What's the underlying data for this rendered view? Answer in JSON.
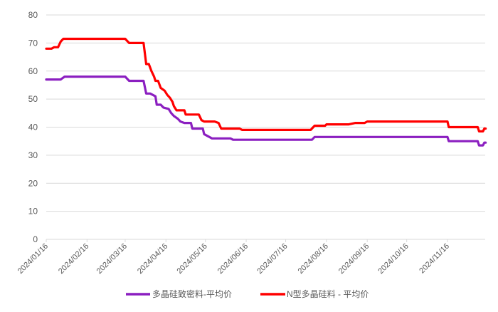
{
  "chart_data": {
    "type": "line",
    "title": "",
    "xlabel": "",
    "ylabel": "",
    "ylim": [
      0,
      80
    ],
    "yticks": [
      0,
      10,
      20,
      30,
      40,
      50,
      60,
      70,
      80
    ],
    "grid": true,
    "legend_position": "bottom",
    "x_tick_labels": [
      "2024/01/16",
      "2024/02/16",
      "2024/03/16",
      "2024/04/16",
      "2024/05/16",
      "2024/06/16",
      "2024/07/16",
      "2024/08/16",
      "2024/09/16",
      "2024/10/16",
      "2024/11/16"
    ],
    "x_unit": "days since 2024/01/16",
    "x_range": [
      0,
      334
    ],
    "series": [
      {
        "name": "多晶硅致密料-平均价",
        "color": "#8B1FC0",
        "points": [
          [
            0,
            57
          ],
          [
            11,
            57
          ],
          [
            14,
            58
          ],
          [
            60,
            58
          ],
          [
            63,
            56.5
          ],
          [
            74,
            56.5
          ],
          [
            76,
            52
          ],
          [
            79,
            52
          ],
          [
            83,
            51
          ],
          [
            84,
            48
          ],
          [
            87,
            48
          ],
          [
            89,
            47
          ],
          [
            93,
            46.5
          ],
          [
            95,
            45
          ],
          [
            97,
            44
          ],
          [
            100,
            43
          ],
          [
            102,
            42
          ],
          [
            105,
            41.5
          ],
          [
            110,
            41.5
          ],
          [
            111,
            39.5
          ],
          [
            119,
            39.5
          ],
          [
            120,
            37.5
          ],
          [
            122,
            37
          ],
          [
            124,
            36.5
          ],
          [
            126,
            36
          ],
          [
            140,
            36
          ],
          [
            142,
            35.5
          ],
          [
            202,
            35.5
          ],
          [
            204,
            36.5
          ],
          [
            305,
            36.5
          ],
          [
            306,
            35
          ],
          [
            328,
            35
          ],
          [
            329,
            33.5
          ],
          [
            332,
            33.5
          ],
          [
            333,
            34.5
          ],
          [
            334,
            34.5
          ]
        ]
      },
      {
        "name": "N型多晶硅料 - 平均价",
        "color": "#FF0000",
        "points": [
          [
            0,
            68
          ],
          [
            4,
            68
          ],
          [
            6,
            68.5
          ],
          [
            9,
            68.5
          ],
          [
            11,
            70.5
          ],
          [
            13,
            71.5
          ],
          [
            60,
            71.5
          ],
          [
            63,
            70
          ],
          [
            74,
            70
          ],
          [
            76,
            62.5
          ],
          [
            78,
            62.5
          ],
          [
            80,
            60
          ],
          [
            82,
            58
          ],
          [
            83,
            56.5
          ],
          [
            85,
            56.5
          ],
          [
            87,
            54
          ],
          [
            90,
            53
          ],
          [
            92,
            51.5
          ],
          [
            94,
            50.5
          ],
          [
            96,
            49
          ],
          [
            97,
            47.5
          ],
          [
            99,
            46
          ],
          [
            105,
            46
          ],
          [
            106,
            44.5
          ],
          [
            116,
            44.5
          ],
          [
            118,
            42.5
          ],
          [
            120,
            42
          ],
          [
            128,
            42
          ],
          [
            131,
            41.5
          ],
          [
            133,
            39.5
          ],
          [
            147,
            39.5
          ],
          [
            149,
            39
          ],
          [
            201,
            39
          ],
          [
            204,
            40.5
          ],
          [
            212,
            40.5
          ],
          [
            213,
            41
          ],
          [
            230,
            41
          ],
          [
            235,
            41.5
          ],
          [
            242,
            41.5
          ],
          [
            244,
            42
          ],
          [
            305,
            42
          ],
          [
            306,
            40
          ],
          [
            328,
            40
          ],
          [
            329,
            38.5
          ],
          [
            332,
            38.5
          ],
          [
            333,
            39.5
          ],
          [
            334,
            39.5
          ]
        ]
      }
    ]
  },
  "legend": {
    "items": [
      {
        "label": "多晶硅致密料-平均价",
        "color": "#8B1FC0"
      },
      {
        "label": "N型多晶硅料 - 平均价",
        "color": "#FF0000"
      }
    ]
  }
}
